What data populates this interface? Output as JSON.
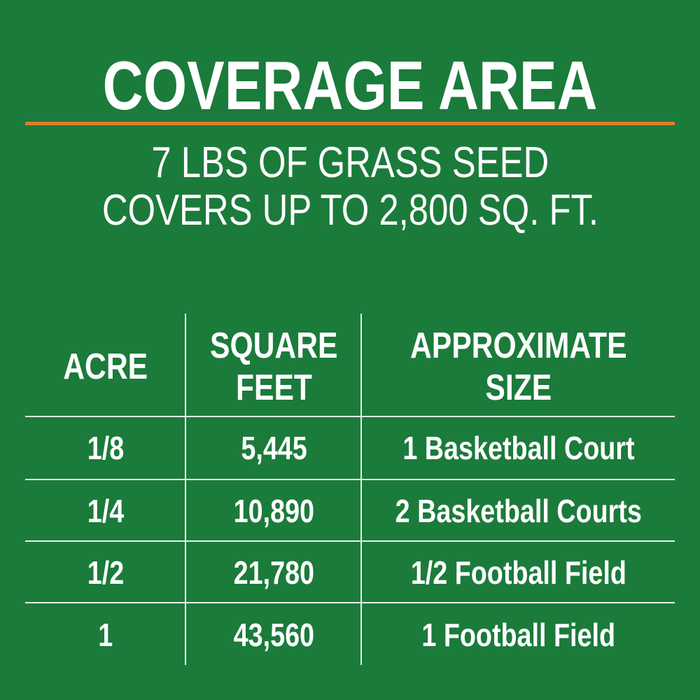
{
  "title": "COVERAGE AREA",
  "subtitle": [
    "7 LBS OF GRASS SEED",
    "COVERS UP TO 2,800 SQ. FT."
  ],
  "colors": {
    "background": "#1b7b3b",
    "rule": "#e07b2c",
    "text": "#ffffff"
  },
  "table": {
    "headers": [
      [
        "ACRE"
      ],
      [
        "SQUARE",
        "FEET"
      ],
      [
        "APPROXIMATE",
        "SIZE"
      ]
    ],
    "rows": [
      [
        "1/8",
        "5,445",
        "1 Basketball Court"
      ],
      [
        "1/4",
        "10,890",
        "2 Basketball Courts"
      ],
      [
        "1/2",
        "21,780",
        "1/2 Football Field"
      ],
      [
        "1",
        "43,560",
        "1 Football Field"
      ]
    ]
  }
}
